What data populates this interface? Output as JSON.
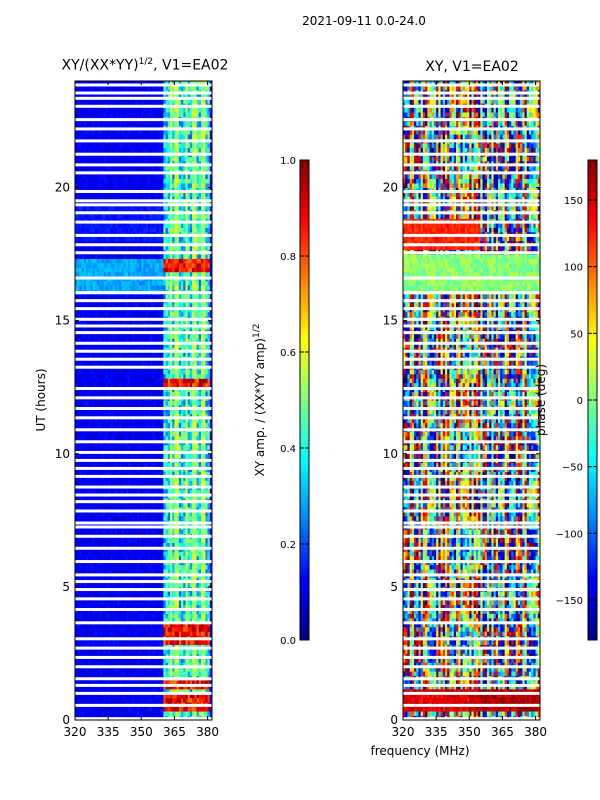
{
  "figure_title": "2021-09-11 0.0-24.0",
  "chart_data": [
    {
      "type": "heatmap",
      "title_main": "XY/(XX*YY)",
      "title_sup": "1/2",
      "title_suffix": ", V1=EA02",
      "xlabel": "",
      "ylabel": "UT (hours)",
      "xlim": [
        320,
        382
      ],
      "ylim": [
        0,
        24
      ],
      "xticks": [
        320,
        335,
        350,
        365,
        380
      ],
      "yticks": [
        0,
        5,
        10,
        15,
        20
      ],
      "colormap": "jet",
      "colorbar": {
        "label_main": "XY amp. / (XX*YY amp)",
        "label_sup": "1/2",
        "range": [
          0.0,
          1.0
        ],
        "ticks": [
          "0.0",
          "0.2",
          "0.4",
          "0.6",
          "0.8",
          "1.0"
        ],
        "tick_values": [
          0.0,
          0.2,
          0.4,
          0.6,
          0.8,
          1.0
        ]
      },
      "bright_band_mhz": [
        360,
        381
      ],
      "high_amplitude_windows_hours": [
        [
          0.4,
          1.0
        ],
        [
          1.2,
          1.5
        ],
        [
          2.9,
          3.6
        ],
        [
          12.5,
          12.9
        ],
        [
          16.9,
          17.3
        ]
      ]
    },
    {
      "type": "heatmap",
      "title_main": "XY, V1=EA02",
      "xlabel": "frequency (MHz)",
      "ylabel": "",
      "xlim": [
        320,
        382
      ],
      "ylim": [
        0,
        24
      ],
      "xticks": [
        320,
        335,
        350,
        365,
        380
      ],
      "yticks": [
        0,
        5,
        10,
        15,
        20
      ],
      "colormap": "jet",
      "colorbar": {
        "label_main": "phase (deg)",
        "range": [
          -180,
          180
        ],
        "ticks": [
          "150",
          "100",
          "50",
          "0",
          "−50",
          "−100",
          "−150"
        ],
        "tick_values": [
          150,
          100,
          50,
          0,
          -50,
          -100,
          -150
        ]
      }
    }
  ],
  "flagged_rows_hours": [
    0.05,
    0.55,
    1.0,
    1.3,
    1.55,
    2.0,
    2.35,
    2.7,
    3.05,
    3.65,
    4.15,
    4.55,
    4.9,
    5.2,
    5.45,
    5.95,
    6.45,
    6.9,
    7.25,
    7.4,
    7.85,
    8.2,
    8.45,
    8.75,
    9.15,
    9.45,
    9.75,
    10.05,
    10.45,
    10.9,
    11.35,
    11.7,
    12.1,
    12.45,
    13.25,
    13.55,
    13.85,
    14.15,
    14.55,
    14.8,
    15.05,
    15.45,
    15.75,
    16.05,
    16.6,
    17.55,
    17.85,
    18.2,
    18.7,
    19.05,
    19.35,
    19.5,
    19.85,
    20.55,
    20.85,
    21.25,
    21.75,
    22.2,
    22.55,
    23.05,
    23.35,
    23.55,
    23.85
  ]
}
